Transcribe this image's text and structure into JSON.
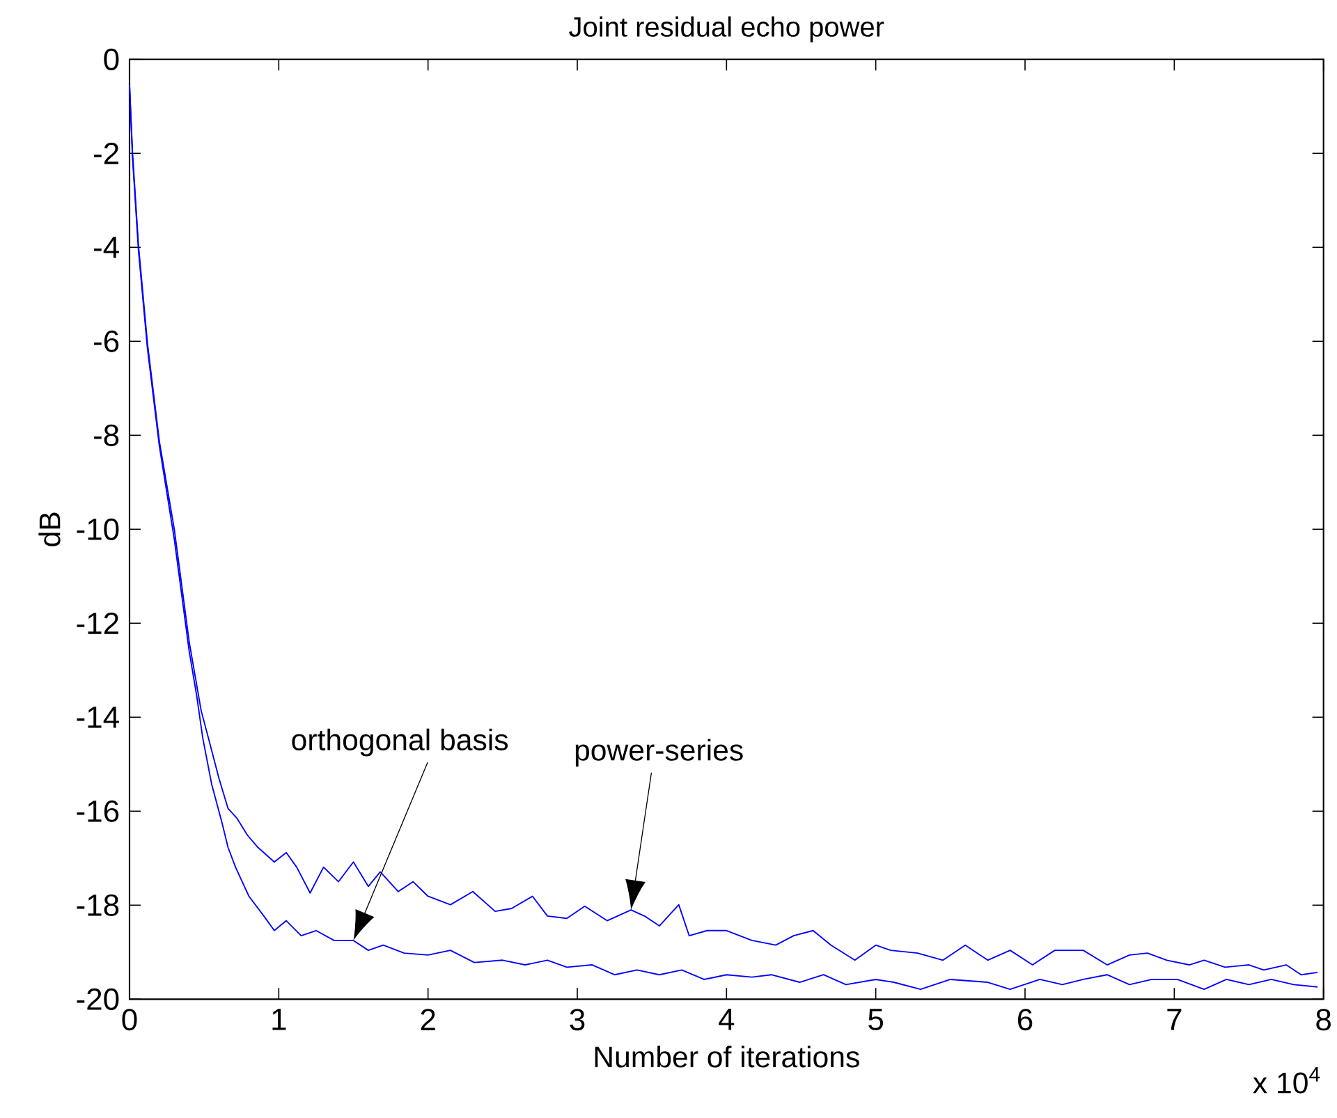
{
  "chart_data": {
    "type": "line",
    "title": "Joint residual echo power",
    "xlabel": "Number of iterations",
    "ylabel": "dB",
    "xlim": [
      0,
      8
    ],
    "ylim": [
      -20,
      0
    ],
    "xticks": [
      0,
      1,
      2,
      3,
      4,
      5,
      6,
      7,
      8
    ],
    "yticks": [
      -20,
      -18,
      -16,
      -14,
      -12,
      -10,
      -8,
      -6,
      -4,
      -2,
      0
    ],
    "series": [
      {
        "color": "#0000ff",
        "x": [
          0,
          0.02,
          0.06,
          0.12,
          0.2,
          0.3,
          0.4,
          0.48,
          0.54,
          0.6,
          0.66,
          0.72,
          0.79,
          0.86,
          0.97,
          1.05,
          1.12,
          1.21,
          1.3,
          1.4,
          1.5,
          1.6,
          1.68,
          1.8,
          1.9,
          2.0,
          2.15,
          2.3,
          2.45,
          2.56,
          2.7,
          2.8,
          2.93,
          3.05,
          3.2,
          3.36,
          3.45,
          3.55,
          3.68,
          3.75,
          3.87,
          4.0,
          4.17,
          4.33,
          4.45,
          4.58,
          4.7,
          4.86,
          5.0,
          5.1,
          5.28,
          5.45,
          5.6,
          5.75,
          5.9,
          6.05,
          6.2,
          6.39,
          6.55,
          6.7,
          6.82,
          6.95,
          7.1,
          7.2,
          7.34,
          7.5,
          7.6,
          7.75,
          7.85,
          7.96
        ],
        "values": [
          -0.55,
          -1.98,
          -3.96,
          -6.04,
          -8.13,
          -10.0,
          -12.4,
          -13.86,
          -14.58,
          -15.31,
          -15.94,
          -16.15,
          -16.51,
          -16.77,
          -17.08,
          -16.88,
          -17.19,
          -17.74,
          -17.19,
          -17.5,
          -17.08,
          -17.6,
          -17.29,
          -17.71,
          -17.5,
          -17.81,
          -17.99,
          -17.71,
          -18.13,
          -18.07,
          -17.81,
          -18.23,
          -18.28,
          -18.02,
          -18.33,
          -18.1,
          -18.23,
          -18.44,
          -17.99,
          -18.65,
          -18.54,
          -18.54,
          -18.75,
          -18.85,
          -18.65,
          -18.54,
          -18.85,
          -19.17,
          -18.85,
          -18.96,
          -19.02,
          -19.17,
          -18.85,
          -19.17,
          -18.96,
          -19.27,
          -18.96,
          -18.96,
          -19.27,
          -19.06,
          -19.02,
          -19.17,
          -19.27,
          -19.17,
          -19.32,
          -19.27,
          -19.38,
          -19.27,
          -19.48,
          -19.43
        ]
      },
      {
        "color": "#0000ff",
        "x": [
          0,
          0.02,
          0.06,
          0.12,
          0.2,
          0.3,
          0.4,
          0.45,
          0.49,
          0.55,
          0.62,
          0.66,
          0.71,
          0.8,
          0.9,
          0.97,
          1.05,
          1.15,
          1.25,
          1.37,
          1.5,
          1.6,
          1.7,
          1.84,
          2.0,
          2.15,
          2.31,
          2.5,
          2.65,
          2.8,
          2.93,
          3.1,
          3.25,
          3.4,
          3.55,
          3.7,
          3.85,
          4.0,
          4.17,
          4.3,
          4.49,
          4.65,
          4.8,
          5.0,
          5.12,
          5.3,
          5.5,
          5.75,
          5.9,
          6.1,
          6.25,
          6.39,
          6.55,
          6.7,
          6.85,
          7.02,
          7.2,
          7.35,
          7.5,
          7.65,
          7.8,
          7.96
        ],
        "values": [
          -0.55,
          -2.09,
          -4.07,
          -6.15,
          -8.23,
          -10.21,
          -12.6,
          -13.54,
          -14.43,
          -15.42,
          -16.25,
          -16.77,
          -17.19,
          -17.81,
          -18.23,
          -18.54,
          -18.33,
          -18.65,
          -18.54,
          -18.75,
          -18.75,
          -18.96,
          -18.85,
          -19.02,
          -19.06,
          -18.96,
          -19.22,
          -19.17,
          -19.27,
          -19.17,
          -19.32,
          -19.27,
          -19.48,
          -19.38,
          -19.48,
          -19.38,
          -19.58,
          -19.48,
          -19.53,
          -19.48,
          -19.64,
          -19.48,
          -19.69,
          -19.58,
          -19.64,
          -19.79,
          -19.58,
          -19.64,
          -19.79,
          -19.58,
          -19.69,
          -19.58,
          -19.48,
          -19.69,
          -19.58,
          -19.58,
          -19.79,
          -19.58,
          -19.69,
          -19.58,
          -19.69,
          -19.74
        ]
      }
    ],
    "annotations": [
      "x 10$^{4}$",
      "orthogonal basis",
      "power-series"
    ]
  }
}
